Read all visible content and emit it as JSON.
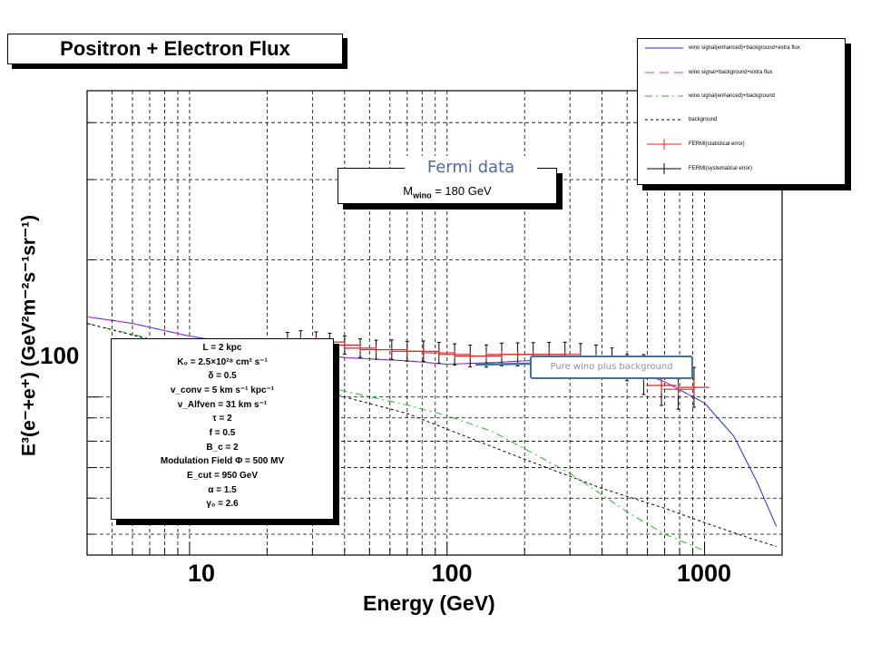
{
  "chart_data": {
    "type": "line",
    "title": "Positron + Electron Flux",
    "xlabel": "Energy (GeV)",
    "ylabel": "E³(e⁻+e⁺) (GeV²m⁻²s⁻¹sr⁻¹)",
    "x_scale": "log",
    "y_scale": "log",
    "xlim": [
      4,
      2000
    ],
    "ylim": [
      45,
      470
    ],
    "x_ticks": [
      "10",
      "100",
      "1000"
    ],
    "y_ticks": [
      "100"
    ],
    "grid": true,
    "legend_position": "top-right",
    "mass_label": "M_wino = 180 GeV",
    "mass_prefix": "M",
    "mass_sub": "wino",
    "mass_rest": " = 180 GeV",
    "annotation_fermi": "Fermi data",
    "annotation_callout": "Pure wino plus background",
    "params": [
      "L = 2 kpc",
      "K₀ = 2.5×10²⁸ cm² s⁻¹",
      "δ = 0.5",
      "v_conv = 5 km s⁻¹ kpc⁻¹",
      "v_Alfven = 31 km s⁻¹",
      "τ = 2",
      "f = 0.5",
      "B_c = 2",
      "Modulation Field   Φ = 500 MV",
      "E_cut = 950 GeV",
      "α = 1.5",
      "γ₀ = 2.6"
    ],
    "series": [
      {
        "name": "wino signal(enhanced)+background+extra flux",
        "color": "#1f2ad6",
        "style": "solid",
        "x": [
          4,
          6,
          10,
          20,
          40,
          70,
          100,
          150,
          200,
          300,
          400,
          500,
          700,
          1000,
          1300,
          1600,
          1900
        ],
        "y": [
          150,
          145,
          136,
          128,
          122,
          120,
          118,
          119,
          120,
          121,
          120,
          116,
          108,
          97,
          82,
          65,
          52
        ]
      },
      {
        "name": "wino signal+background+extra flux",
        "color": "#cc33cc",
        "style": "dashed",
        "x": [
          4,
          6,
          10,
          20,
          40,
          70,
          100,
          150,
          200,
          300,
          400,
          500,
          700,
          1000
        ],
        "y": [
          150,
          145,
          136,
          128,
          122,
          120,
          118,
          119,
          120,
          121,
          120,
          116,
          108,
          97
        ]
      },
      {
        "name": "wino signal(enhanced)+background",
        "color": "#22bb22",
        "style": "dashdot",
        "x": [
          4,
          10,
          20,
          40,
          70,
          100,
          150,
          200,
          300,
          400,
          500,
          700,
          1000
        ],
        "y": [
          145,
          128,
          114,
          103,
          96,
          91,
          84,
          77,
          68,
          61,
          56,
          50,
          46
        ]
      },
      {
        "name": "background",
        "color": "#000000",
        "style": "dotted",
        "x": [
          4,
          10,
          20,
          40,
          70,
          100,
          200,
          400,
          700,
          1000,
          1500,
          1900
        ],
        "y": [
          145,
          127,
          112,
          100,
          92,
          85,
          73,
          63,
          57,
          53,
          49,
          47
        ]
      },
      {
        "name": "FERMI(statistical error)",
        "color": "#e02020",
        "style": "errorbar",
        "x": [
          24,
          27,
          31,
          35,
          40,
          46,
          53,
          61,
          70,
          81,
          93,
          107,
          123,
          142,
          163,
          188,
          216,
          249,
          287,
          330,
          379,
          437,
          500,
          580,
          680,
          790,
          910
        ],
        "y": [
          133,
          134,
          133,
          132,
          130,
          128,
          127,
          127,
          126,
          126,
          125,
          124,
          123,
          123,
          124,
          124,
          124,
          124,
          124,
          123,
          122,
          120,
          116,
          112,
          106,
          104,
          105
        ]
      },
      {
        "name": "FERMI(systematical error)",
        "color": "#000000",
        "style": "errorbar",
        "x": [
          24,
          27,
          31,
          35,
          40,
          46,
          53,
          61,
          70,
          81,
          93,
          107,
          123,
          142,
          163,
          188,
          216,
          249,
          287,
          330,
          379,
          437,
          500,
          580,
          680,
          790,
          910
        ],
        "y": [
          133,
          134,
          133,
          132,
          130,
          128,
          127,
          127,
          126,
          126,
          125,
          124,
          123,
          123,
          124,
          124,
          124,
          124,
          124,
          123,
          122,
          120,
          116,
          112,
          106,
          104,
          105
        ]
      }
    ]
  }
}
